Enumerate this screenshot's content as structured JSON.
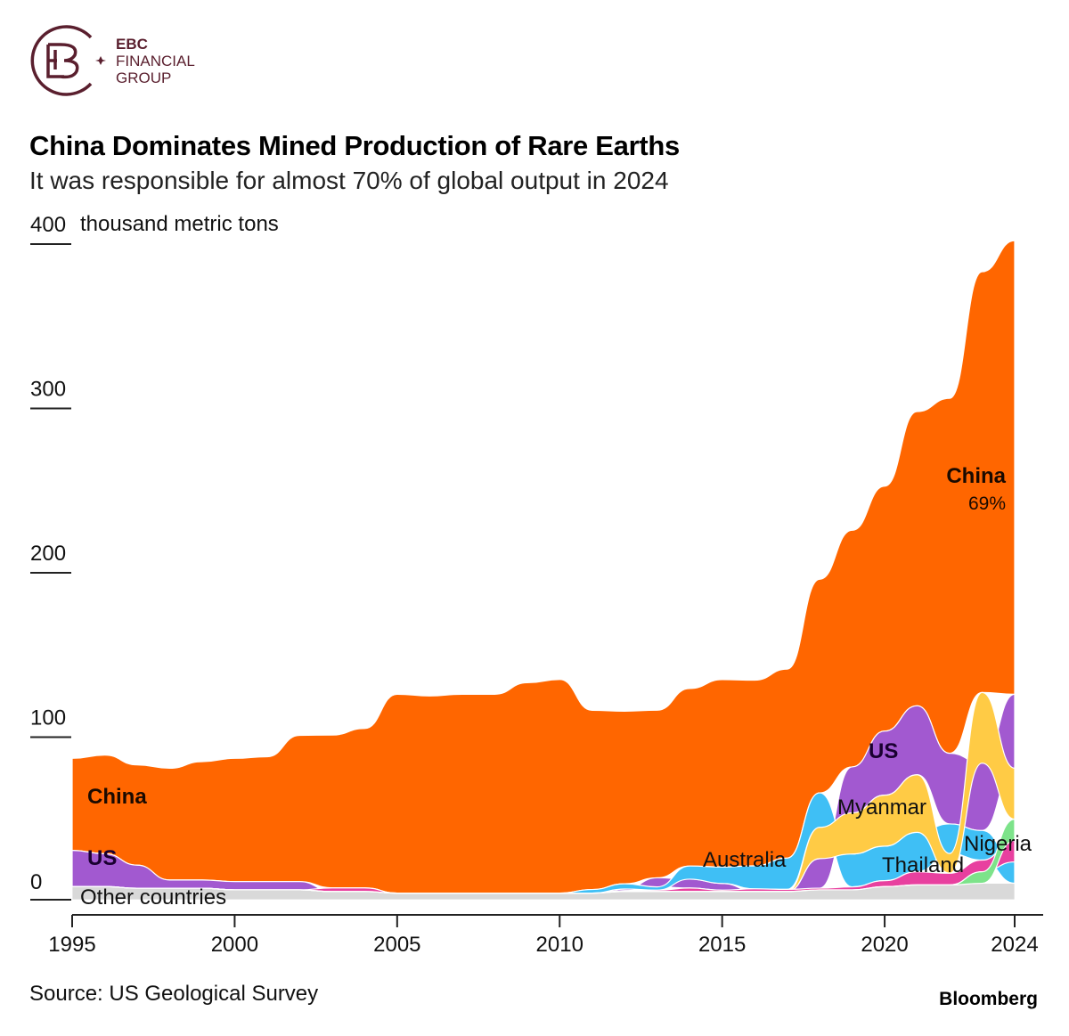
{
  "logo": {
    "line1": "EBC",
    "line2": "FINANCIAL",
    "line3": "GROUP",
    "color": "#5a1f2e"
  },
  "title": "China Dominates Mined Production of Rare Earths",
  "subtitle": "It was responsible for almost 70% of global output in 2024",
  "source": "Source: US Geological Survey",
  "brand": "Bloomberg",
  "chart_data": {
    "type": "area",
    "stacking": "ranked-stacked",
    "unit_label": "thousand metric tons",
    "ylim": [
      0,
      400
    ],
    "yticks": [
      {
        "value": 0,
        "label": "0"
      },
      {
        "value": 100,
        "label": "100"
      },
      {
        "value": 200,
        "label": "200"
      },
      {
        "value": 300,
        "label": "300"
      },
      {
        "value": 400,
        "label": "400"
      }
    ],
    "xlim": [
      1995,
      2024
    ],
    "xticks": [
      {
        "value": 1995,
        "label": "1995"
      },
      {
        "value": 2000,
        "label": "2000"
      },
      {
        "value": 2005,
        "label": "2005"
      },
      {
        "value": 2010,
        "label": "2010"
      },
      {
        "value": 2015,
        "label": "2015"
      },
      {
        "value": 2020,
        "label": "2020"
      },
      {
        "value": 2024,
        "label": "2024"
      }
    ],
    "x": [
      1995,
      1996,
      1997,
      1998,
      1999,
      2000,
      2001,
      2002,
      2003,
      2004,
      2005,
      2006,
      2007,
      2008,
      2009,
      2010,
      2011,
      2012,
      2013,
      2014,
      2015,
      2016,
      2017,
      2018,
      2019,
      2020,
      2021,
      2022,
      2023,
      2024
    ],
    "series": [
      {
        "name": "Other countries",
        "color": "#d9d9d9",
        "fixed_bottom": true,
        "values": [
          8,
          8,
          7,
          7,
          7,
          6,
          6,
          6,
          5,
          5,
          4,
          4,
          4,
          4,
          4,
          4,
          4,
          5,
          5,
          5,
          5,
          5,
          5,
          6,
          6,
          8,
          9,
          9,
          10,
          10
        ]
      },
      {
        "name": "China",
        "color": "#ff6600",
        "values": [
          56,
          60,
          61,
          68,
          72,
          75,
          76,
          89,
          93,
          97,
          121,
          120,
          121,
          121,
          128,
          130,
          109,
          105,
          102,
          108,
          114,
          113,
          115,
          130,
          144,
          149,
          179,
          216,
          256,
          276
        ]
      },
      {
        "name": "US",
        "color": "#a259d0",
        "values": [
          22,
          20,
          14,
          5,
          5,
          5,
          5,
          5,
          0,
          0,
          0,
          0,
          0,
          0,
          0,
          0,
          0,
          1,
          5.5,
          5.4,
          4.1,
          0,
          0,
          18,
          28,
          39,
          42,
          43,
          41,
          45
        ]
      },
      {
        "name": "Australia",
        "color": "#3fbff5",
        "values": [
          0,
          0,
          0,
          0,
          0,
          0,
          0,
          0,
          0,
          0,
          0,
          0,
          0,
          0,
          0,
          0,
          2.2,
          3.2,
          2,
          8,
          10,
          14,
          19,
          21,
          20,
          21,
          24,
          18,
          18,
          13
        ]
      },
      {
        "name": "Myanmar",
        "color": "#ffcb45",
        "values": [
          0,
          0,
          0,
          0,
          0,
          0,
          0,
          0,
          0,
          0,
          0,
          0,
          0,
          0,
          0,
          0,
          0,
          0,
          0,
          0,
          0,
          0,
          0,
          19,
          25,
          31,
          35,
          12,
          43,
          31
        ]
      },
      {
        "name": "Thailand",
        "color": "#e8409f",
        "values": [
          0,
          0,
          0,
          0,
          0,
          0,
          0,
          0,
          2.2,
          2.2,
          0,
          0,
          0,
          0,
          0,
          0,
          0,
          0.5,
          0.8,
          2.1,
          0.8,
          1.6,
          1.3,
          1,
          1.8,
          3.6,
          8,
          7.1,
          7.1,
          13
        ]
      },
      {
        "name": "Nigeria",
        "color": "#7de38a",
        "values": [
          0,
          0,
          0,
          0,
          0,
          0,
          0,
          0,
          0,
          0,
          0,
          0,
          0,
          0,
          0,
          0,
          0,
          0,
          0,
          0,
          0,
          0,
          0,
          0,
          0,
          0,
          0,
          0,
          7,
          13
        ]
      }
    ],
    "annotations": {
      "china_share_2024": "69%"
    },
    "grid": false
  }
}
